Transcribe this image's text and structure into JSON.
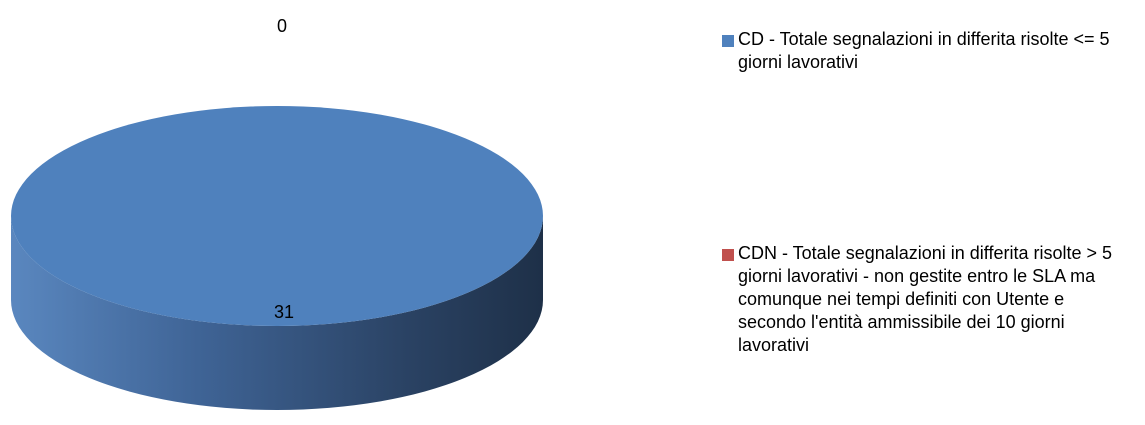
{
  "chart_data": {
    "type": "pie",
    "style": "3d-ellipse",
    "series": [
      {
        "name": "CD - Totale segnalazioni in differita risolte <= 5 giorni lavorativi",
        "value": 31,
        "label": "31",
        "color": "#4F81BD"
      },
      {
        "name": "CDN - Totale segnalazioni in differita risolte > 5 giorni lavorativi - non gestite entro le SLA ma comunque nei tempi definiti con Utente e secondo l'entità ammissibile dei 10 giorni lavorativi",
        "value": 0,
        "label": "0",
        "color": "#C0504D"
      }
    ],
    "legend_position": "right"
  }
}
